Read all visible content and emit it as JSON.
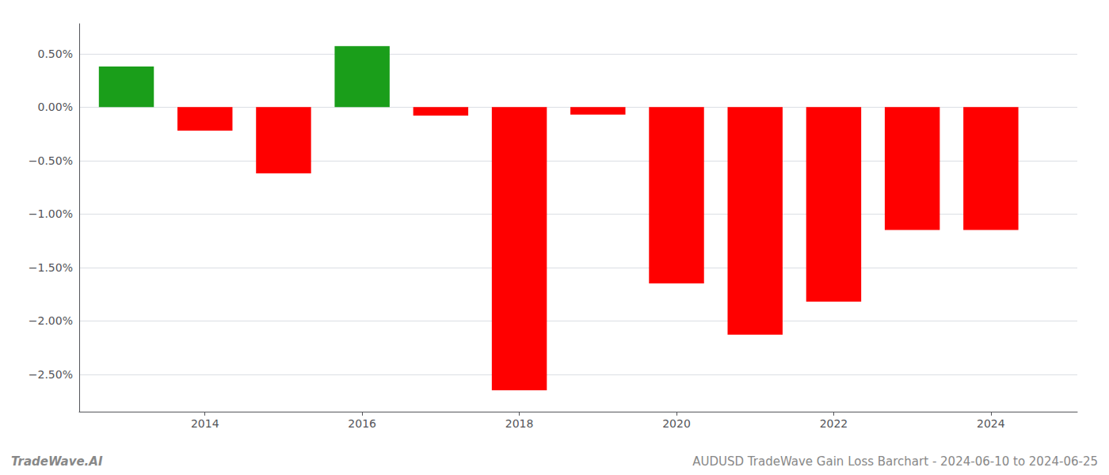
{
  "chart_data": {
    "type": "bar",
    "x": [
      2013,
      2014,
      2015,
      2016,
      2017,
      2018,
      2019,
      2020,
      2021,
      2022,
      2023,
      2024
    ],
    "values": [
      0.38,
      -0.22,
      -0.62,
      0.57,
      -0.08,
      -2.65,
      -0.07,
      -1.65,
      -2.13,
      -1.82,
      -1.15,
      -1.15
    ],
    "colors": [
      "#1a9e1a",
      "#ff0000",
      "#ff0000",
      "#1a9e1a",
      "#ff0000",
      "#ff0000",
      "#ff0000",
      "#ff0000",
      "#ff0000",
      "#ff0000",
      "#ff0000",
      "#ff0000"
    ],
    "xlim": [
      2012.4,
      2025.1
    ],
    "xticks": [
      2014,
      2016,
      2018,
      2020,
      2022,
      2024
    ],
    "ylim": [
      -2.85,
      0.78
    ],
    "yticks": [
      {
        "value": 0.5,
        "label": "0.50%"
      },
      {
        "value": 0.0,
        "label": "0.00%"
      },
      {
        "value": -0.5,
        "label": "−0.50%"
      },
      {
        "value": -1.0,
        "label": "−1.00%"
      },
      {
        "value": -1.5,
        "label": "−1.50%"
      },
      {
        "value": -2.0,
        "label": "−2.00%"
      },
      {
        "value": -2.5,
        "label": "−2.50%"
      }
    ],
    "grid": true,
    "annotations": [
      "TradeWave.AI",
      "AUDUSD TradeWave Gain Loss Barchart - 2024-06-10 to 2024-06-25"
    ]
  }
}
